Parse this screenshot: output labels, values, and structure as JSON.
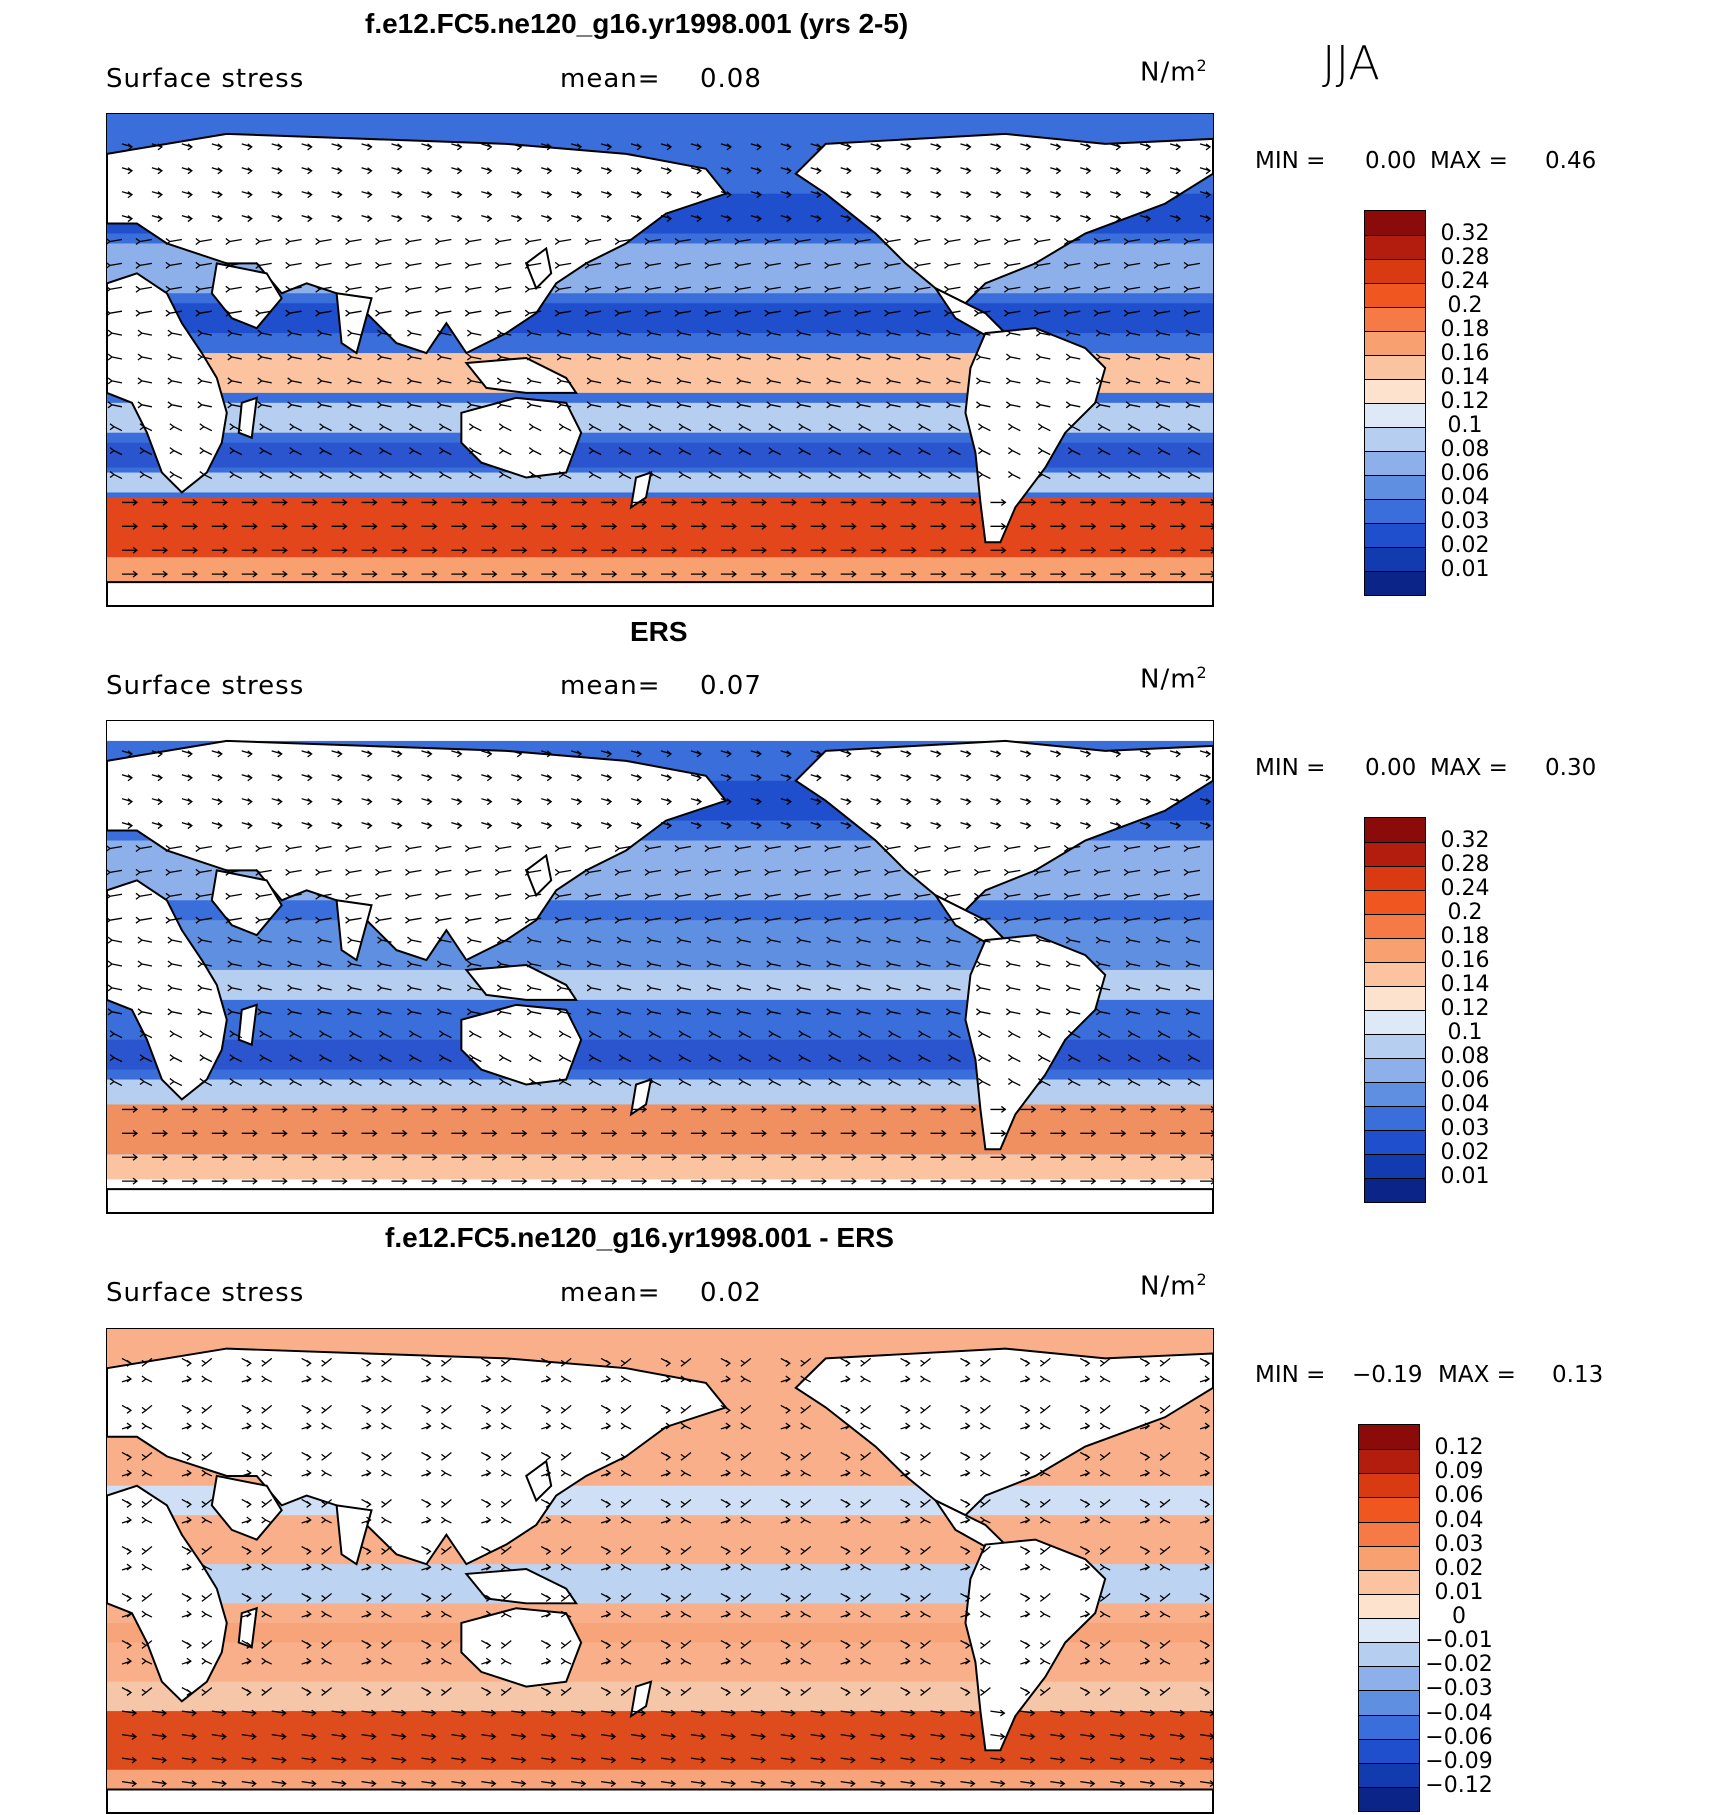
{
  "season": "JJA",
  "panels": [
    {
      "id": "model",
      "title": "f.e12.FC5.ne120_g16.yr1998.001 (yrs 2-5)",
      "variable": "Surface stress",
      "mean_label": "mean=",
      "mean_value": "0.08",
      "units_base": "N/m",
      "units_sup": "2",
      "min_label": "MIN =",
      "min_value": "0.00",
      "max_label": "MAX =",
      "max_value": "0.46",
      "colorbar_labels": [
        "0.32",
        "0.28",
        "0.24",
        "0.2",
        "0.18",
        "0.16",
        "0.14",
        "0.12",
        "0.1",
        "0.08",
        "0.06",
        "0.04",
        "0.03",
        "0.02",
        "0.01"
      ],
      "colorbar_colors": [
        "#8b0a0a",
        "#b31d0d",
        "#d93a12",
        "#f0561f",
        "#f57a45",
        "#f9a070",
        "#fbc3a0",
        "#fde3cd",
        "#dde9f7",
        "#b6cff0",
        "#8eb0ea",
        "#5f8fe0",
        "#3a6fdb",
        "#1f4fcc",
        "#123bb0",
        "#0a2487"
      ]
    },
    {
      "id": "obs",
      "title": "ERS",
      "variable": "Surface stress",
      "mean_label": "mean=",
      "mean_value": "0.07",
      "units_base": "N/m",
      "units_sup": "2",
      "min_label": "MIN =",
      "min_value": "0.00",
      "max_label": "MAX =",
      "max_value": "0.30",
      "colorbar_labels": [
        "0.32",
        "0.28",
        "0.24",
        "0.2",
        "0.18",
        "0.16",
        "0.14",
        "0.12",
        "0.1",
        "0.08",
        "0.06",
        "0.04",
        "0.03",
        "0.02",
        "0.01"
      ],
      "colorbar_colors": [
        "#8b0a0a",
        "#b31d0d",
        "#d93a12",
        "#f0561f",
        "#f57a45",
        "#f9a070",
        "#fbc3a0",
        "#fde3cd",
        "#dde9f7",
        "#b6cff0",
        "#8eb0ea",
        "#5f8fe0",
        "#3a6fdb",
        "#1f4fcc",
        "#123bb0",
        "#0a2487"
      ]
    },
    {
      "id": "diff",
      "title": "f.e12.FC5.ne120_g16.yr1998.001 - ERS",
      "variable": "Surface stress",
      "mean_label": "mean=",
      "mean_value": "0.02",
      "units_base": "N/m",
      "units_sup": "2",
      "min_label": "MIN =",
      "min_value": "−0.19",
      "max_label": "MAX =",
      "max_value": "0.13",
      "colorbar_labels": [
        "0.12",
        "0.09",
        "0.06",
        "0.04",
        "0.03",
        "0.02",
        "0.01",
        "0",
        "−0.01",
        "−0.02",
        "−0.03",
        "−0.04",
        "−0.06",
        "−0.09",
        "−0.12"
      ],
      "colorbar_colors": [
        "#8b0a0a",
        "#b31d0d",
        "#d93a12",
        "#f0561f",
        "#f57a45",
        "#f9a070",
        "#fbc3a0",
        "#fde3cd",
        "#dde9f7",
        "#b6cff0",
        "#8eb0ea",
        "#5f8fe0",
        "#3a6fdb",
        "#1f4fcc",
        "#123bb0",
        "#0a2487"
      ]
    }
  ]
}
